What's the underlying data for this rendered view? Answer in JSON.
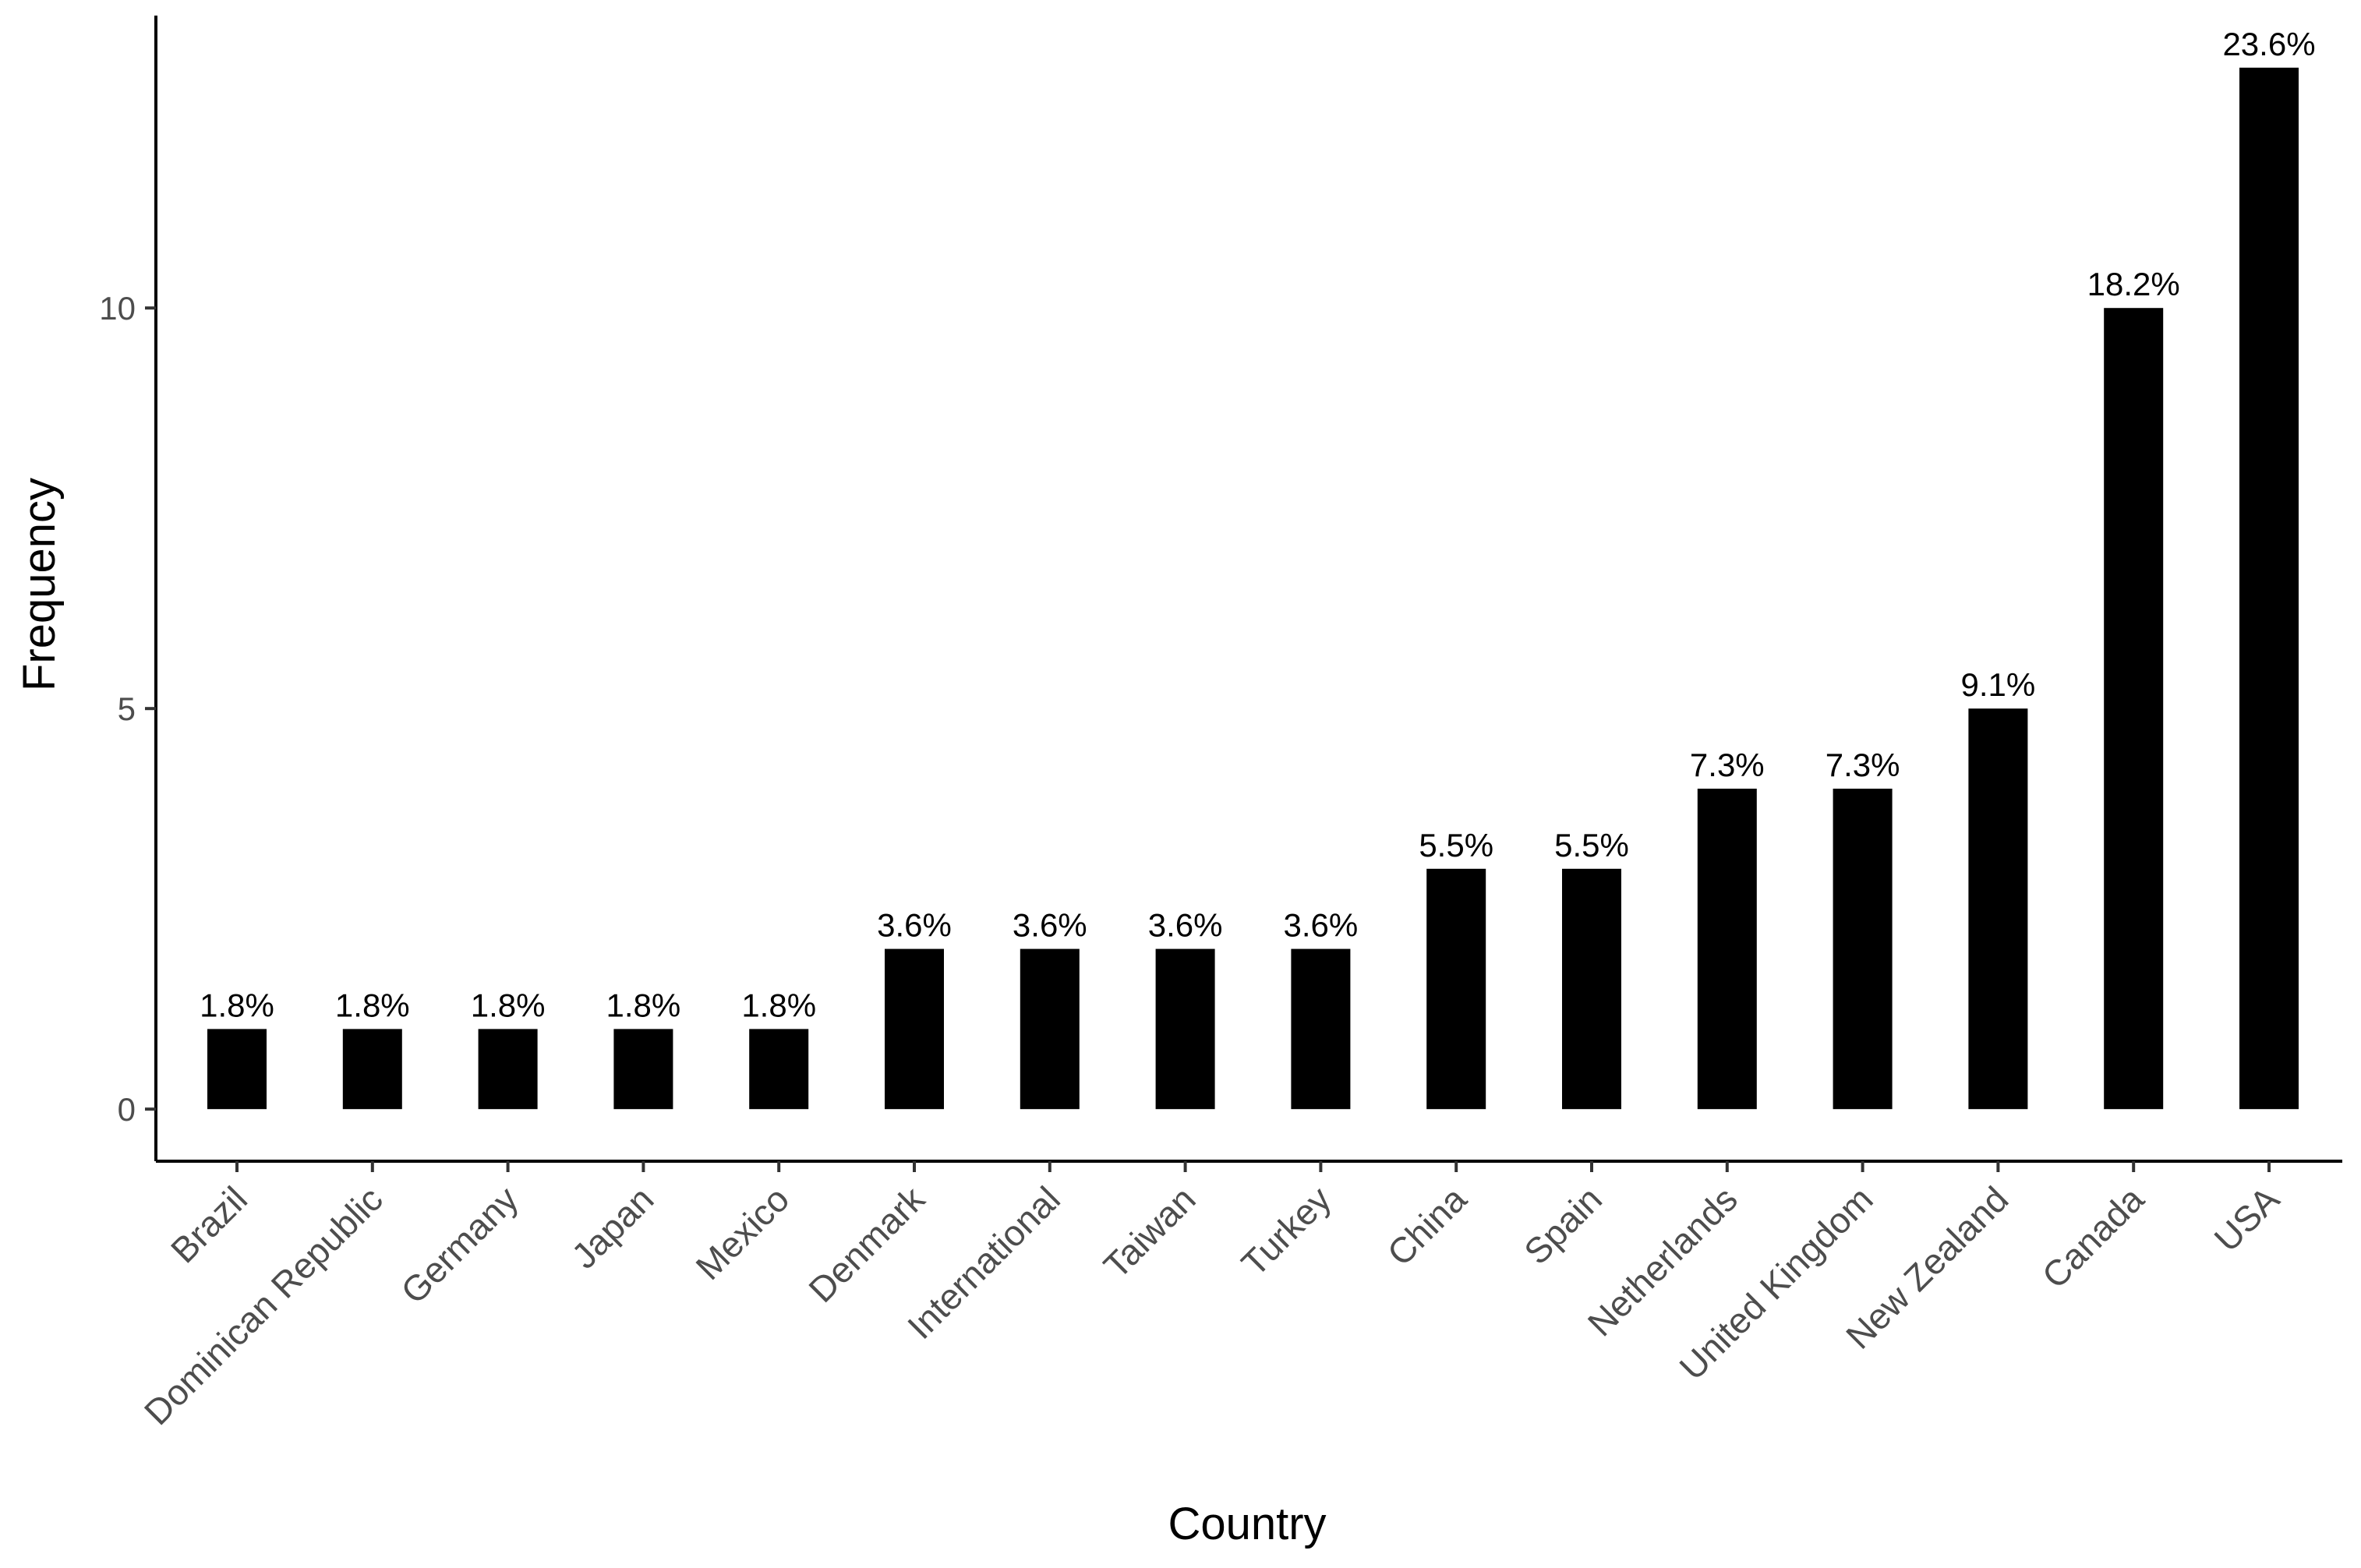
{
  "chart_data": {
    "type": "bar",
    "categories": [
      "Brazil",
      "Dominican Republic",
      "Germany",
      "Japan",
      "Mexico",
      "Denmark",
      "International",
      "Taiwan",
      "Turkey",
      "China",
      "Spain",
      "Netherlands",
      "United Kingdom",
      "New Zealand",
      "Canada",
      "USA"
    ],
    "values": [
      1,
      1,
      1,
      1,
      1,
      2,
      2,
      2,
      2,
      3,
      3,
      4,
      4,
      5,
      10,
      13
    ],
    "data_labels": [
      "1.8%",
      "1.8%",
      "1.8%",
      "1.8%",
      "1.8%",
      "3.6%",
      "3.6%",
      "3.6%",
      "3.6%",
      "5.5%",
      "5.5%",
      "7.3%",
      "7.3%",
      "9.1%",
      "18.2%",
      "23.6%"
    ],
    "xlabel": "Country",
    "ylabel": "Frequency",
    "yticks": [
      0,
      5,
      10
    ],
    "ylim": [
      -0.65,
      13.65
    ],
    "grid": false,
    "bar_color": "#000000"
  }
}
